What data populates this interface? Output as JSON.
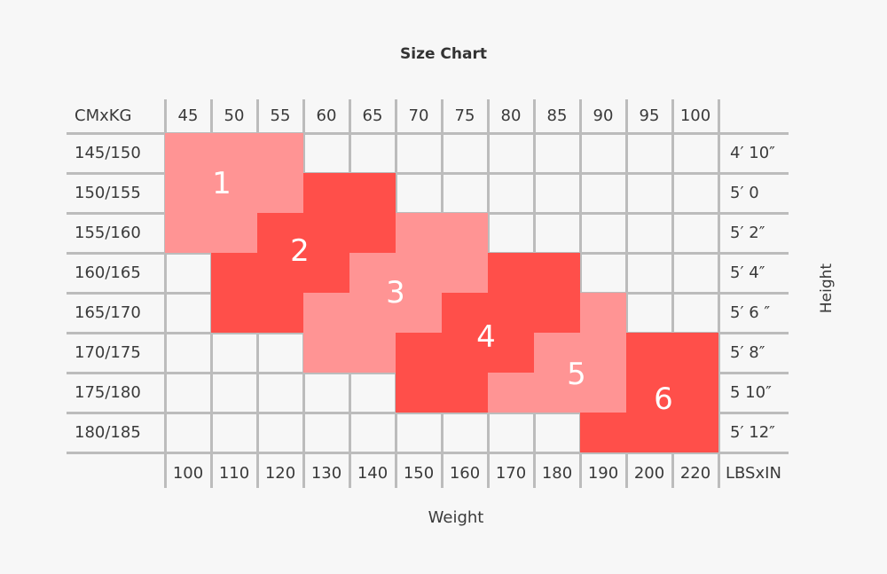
{
  "chart_data": {
    "type": "table",
    "title": "Size Chart",
    "xlabel": "Weight",
    "ylabel": "Height",
    "corner_top_left": "CMxKG",
    "corner_bottom_right": "LBSxIN",
    "columns_kg": [
      "45",
      "50",
      "55",
      "60",
      "65",
      "70",
      "75",
      "80",
      "85",
      "90",
      "95",
      "100"
    ],
    "columns_lbs": [
      "100",
      "110",
      "120",
      "130",
      "140",
      "150",
      "160",
      "170",
      "180",
      "190",
      "200",
      "220"
    ],
    "rows_cm": [
      "145/150",
      "150/155",
      "155/160",
      "160/165",
      "165/170",
      "170/175",
      "175/180",
      "180/185"
    ],
    "rows_ft_in": [
      "4′ 10″",
      "5′ 0",
      "5′ 2″",
      "5′ 4″",
      "5′ 6 ″",
      "5′ 8″",
      "5 10″",
      "5′ 12″"
    ],
    "size_labels": [
      "1",
      "2",
      "3",
      "4",
      "5",
      "6"
    ],
    "size_grid": [
      [
        1,
        1,
        1,
        0,
        0,
        0,
        0,
        0,
        0,
        0,
        0,
        0
      ],
      [
        1,
        1,
        1,
        2,
        2,
        0,
        0,
        0,
        0,
        0,
        0,
        0
      ],
      [
        1,
        1,
        2,
        2,
        2,
        3,
        3,
        0,
        0,
        0,
        0,
        0
      ],
      [
        0,
        2,
        2,
        2,
        3,
        3,
        3,
        4,
        4,
        0,
        0,
        0
      ],
      [
        0,
        2,
        2,
        3,
        3,
        3,
        4,
        4,
        4,
        5,
        0,
        0
      ],
      [
        0,
        0,
        0,
        3,
        3,
        4,
        4,
        4,
        5,
        5,
        6,
        6
      ],
      [
        0,
        0,
        0,
        0,
        0,
        4,
        4,
        5,
        5,
        5,
        6,
        6
      ],
      [
        0,
        0,
        0,
        0,
        0,
        0,
        0,
        0,
        0,
        6,
        6,
        6
      ]
    ],
    "colors": {
      "odd_size": "#ff9494",
      "even_size": "#ff4f4a",
      "grid": "#bcbcbc",
      "background": "#f7f7f7"
    }
  }
}
